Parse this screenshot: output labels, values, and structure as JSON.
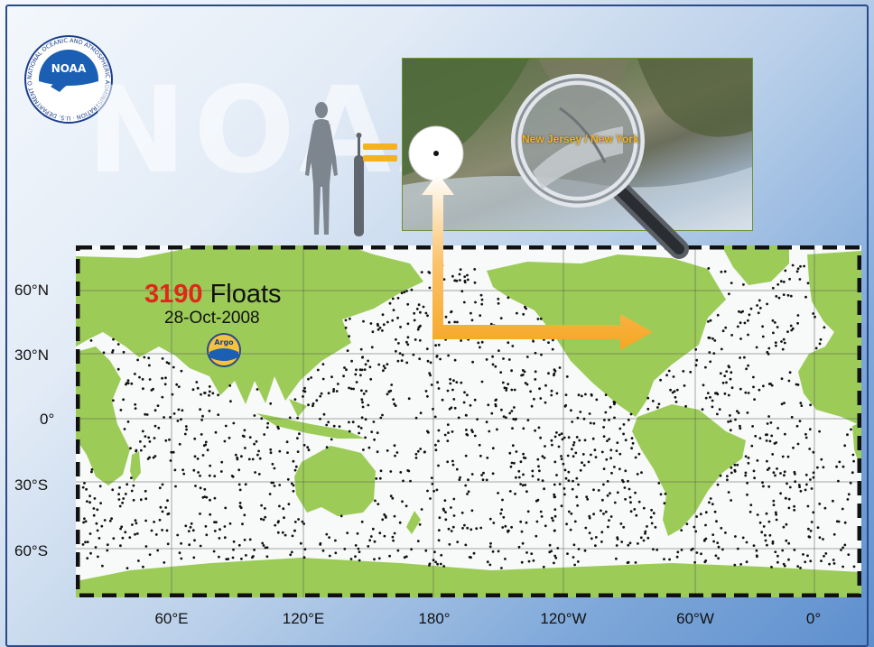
{
  "logo": {
    "text": "NOAA",
    "ring_text": "NATIONAL OCEANIC AND ATMOSPHERIC ADMINISTRATION · U.S. DEPARTMENT OF COMMERCE"
  },
  "watermark": "NOAA",
  "satellite": {
    "place_label": "New Jersey / New York"
  },
  "headline": {
    "count": "3190",
    "word": "Floats",
    "date": "28-Oct-2008"
  },
  "badge": {
    "text": "Argo"
  },
  "lat_labels": [
    "60°N",
    "30°N",
    "0°",
    "30°S",
    "60°S"
  ],
  "lon_labels": [
    "60°E",
    "120°E",
    "180°",
    "120°W",
    "60°W",
    "0°"
  ],
  "colors": {
    "land": "#9ccb58",
    "ocean": "#f7faf8",
    "float": "#111111",
    "count": "#e0281a",
    "arrow": "#f6a623",
    "equals": "#f2b31c"
  },
  "float_count": 3190
}
